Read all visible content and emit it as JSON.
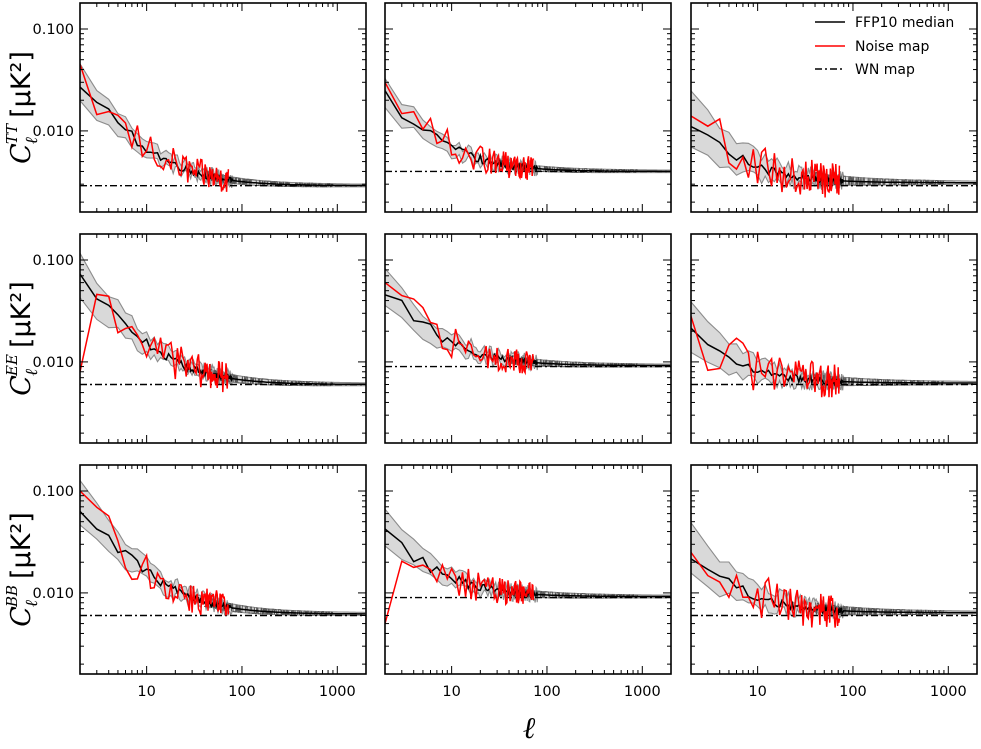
{
  "chart_data": {
    "type": "line",
    "layout": "3x3 grid of log-log panels",
    "xlabel": "ℓ",
    "x_scale": "log",
    "y_scale": "log",
    "xlim": [
      2,
      2000
    ],
    "x_tick_labels": [
      "10",
      "100",
      "1000"
    ],
    "y_tick_labels": [
      "0.010",
      "0.100"
    ],
    "legend": {
      "location": "top-right of top-right panel",
      "entries": [
        {
          "label": "FFP10 median",
          "color": "#000000",
          "style": "solid"
        },
        {
          "label": "Noise map",
          "color": "#ff0000",
          "style": "solid"
        },
        {
          "label": "WN map",
          "color": "#000000",
          "style": "dash-dot"
        }
      ]
    },
    "rows": [
      {
        "spectrum": "TT",
        "ylabel_symbol": "C",
        "ylabel_sub": "ℓ",
        "ylabel_sup": "TT",
        "ylabel_units": "[μK²]",
        "ylim": [
          0.0016,
          0.18
        ],
        "panels": [
          {
            "column": 1,
            "wn_level": 0.0029,
            "asym": 0.0029,
            "start": 0.028,
            "scatter_decades": 0.18,
            "noise_start": 0.045,
            "noise_amp": 0.22
          },
          {
            "column": 2,
            "wn_level": 0.004,
            "asym": 0.004,
            "start": 0.022,
            "scatter_decades": 0.14,
            "noise_start": 0.03,
            "noise_amp": 0.2
          },
          {
            "column": 3,
            "wn_level": 0.0029,
            "asym": 0.0031,
            "start": 0.012,
            "scatter_decades": 0.28,
            "noise_start": 0.014,
            "noise_amp": 0.3
          }
        ]
      },
      {
        "spectrum": "EE",
        "ylabel_symbol": "C",
        "ylabel_sub": "ℓ",
        "ylabel_sup": "EE",
        "ylabel_units": "[μK²]",
        "ylim": [
          0.0016,
          0.18
        ],
        "panels": [
          {
            "column": 1,
            "wn_level": 0.006,
            "asym": 0.006,
            "start": 0.065,
            "scatter_decades": 0.22,
            "noise_start": 0.008,
            "noise_amp": 0.25
          },
          {
            "column": 2,
            "wn_level": 0.009,
            "asym": 0.0092,
            "start": 0.05,
            "scatter_decades": 0.18,
            "noise_start": 0.06,
            "noise_amp": 0.2
          },
          {
            "column": 3,
            "wn_level": 0.006,
            "asym": 0.0062,
            "start": 0.02,
            "scatter_decades": 0.25,
            "noise_start": 0.028,
            "noise_amp": 0.28
          }
        ]
      },
      {
        "spectrum": "BB",
        "ylabel_symbol": "C",
        "ylabel_sub": "ℓ",
        "ylabel_sup": "BB",
        "ylabel_units": "[μK²]",
        "ylim": [
          0.0016,
          0.18
        ],
        "panels": [
          {
            "column": 1,
            "wn_level": 0.006,
            "asym": 0.0062,
            "start": 0.07,
            "scatter_decades": 0.22,
            "noise_start": 0.1,
            "noise_amp": 0.24
          },
          {
            "column": 2,
            "wn_level": 0.009,
            "asym": 0.0092,
            "start": 0.04,
            "scatter_decades": 0.18,
            "noise_start": 0.005,
            "noise_amp": 0.2
          },
          {
            "column": 3,
            "wn_level": 0.006,
            "asym": 0.0064,
            "start": 0.025,
            "scatter_decades": 0.25,
            "noise_start": 0.025,
            "noise_amp": 0.3
          }
        ]
      }
    ],
    "series_colors": {
      "median": "#000000",
      "noise": "#ff0000",
      "band_fill": "#d9d9d9",
      "band_edge": "#8c8c8c",
      "dense_band": "#555555"
    }
  }
}
